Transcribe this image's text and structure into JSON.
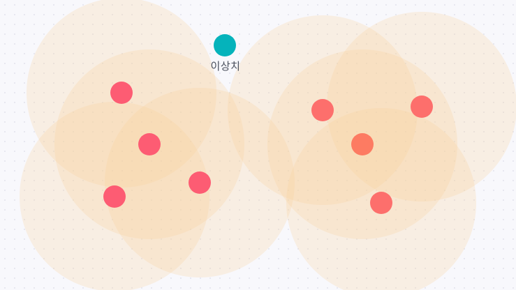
{
  "outlier": {
    "label": "이상치"
  },
  "colors": {
    "halo": "#f6d19c",
    "cluster_left_point": "#fd5c73",
    "cluster_right_point": "#fd6f6c",
    "cluster_right_center": "#fd7b62",
    "outlier_point": "#05b3bb"
  }
}
